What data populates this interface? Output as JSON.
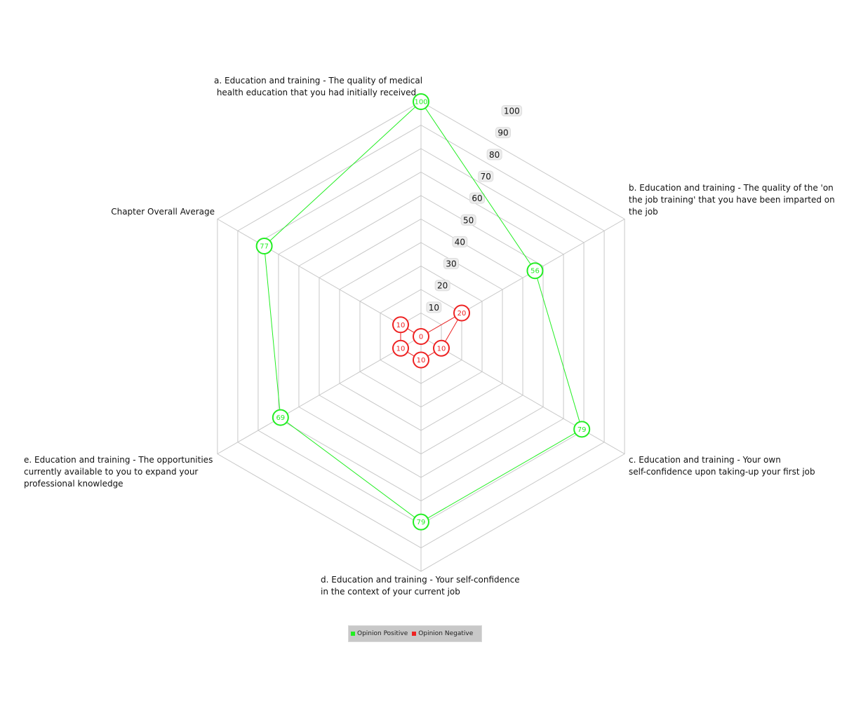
{
  "chart_data": {
    "type": "radar",
    "axes": [
      [
        "a. Education and training - The quality of medical",
        " health education that you had initially received"
      ],
      [
        "b. Education and training - The quality of the 'on",
        "the job training' that you have been imparted on",
        "the job"
      ],
      [
        "c. Education and training - Your own",
        "self-confidence upon taking-up your first job"
      ],
      [
        "d. Education and training - Your self-confidence",
        "in the context of your current job"
      ],
      [
        "e. Education and training - The opportunities",
        "currently available to you to expand your",
        "professional knowledge"
      ],
      [
        "Chapter Overall Average"
      ]
    ],
    "ticks": [
      10,
      20,
      30,
      40,
      50,
      60,
      70,
      80,
      90,
      100
    ],
    "range": [
      0,
      100
    ],
    "grid": true,
    "legend_position": "bottom",
    "series": [
      {
        "name": "Opinion Positive",
        "color": "#22ee22",
        "values": [
          100,
          56,
          79,
          79,
          69,
          77
        ]
      },
      {
        "name": "Opinion Negative",
        "color": "#ee2222",
        "values": [
          0,
          20,
          10,
          10,
          10,
          10
        ]
      }
    ]
  }
}
